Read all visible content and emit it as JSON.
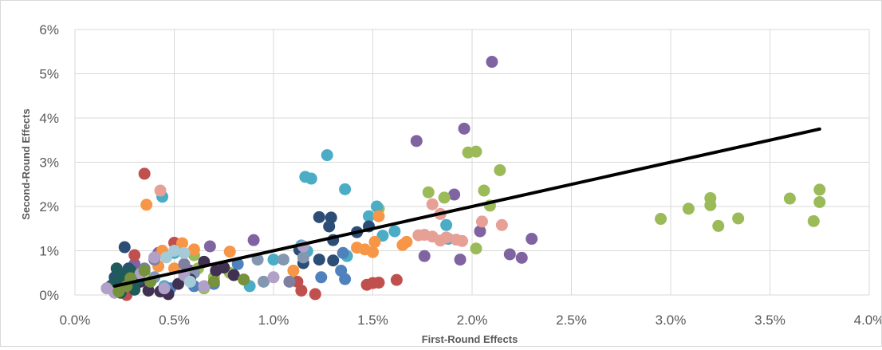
{
  "chart_data": {
    "type": "scatter",
    "title": "",
    "xlabel": "First-Round Effects",
    "ylabel": "Second-Round Effects",
    "xlim": [
      0.0,
      4.0
    ],
    "ylim": [
      0,
      6
    ],
    "x_ticks": [
      "0.0%",
      "0.5%",
      "1.0%",
      "1.5%",
      "2.0%",
      "2.5%",
      "3.0%",
      "3.5%",
      "4.0%"
    ],
    "y_ticks": [
      "0%",
      "1%",
      "2%",
      "3%",
      "4%",
      "5%",
      "6%"
    ],
    "grid": true,
    "legend": "none",
    "trend_line": {
      "x": [
        0.2,
        3.75
      ],
      "y": [
        0.2,
        3.75
      ],
      "color": "#000000"
    },
    "series": [
      {
        "color": "#8064a2",
        "points": [
          [
            2.1,
            5.27
          ],
          [
            1.96,
            3.76
          ],
          [
            1.72,
            3.48
          ],
          [
            1.91,
            2.27
          ],
          [
            2.04,
            1.44
          ],
          [
            2.3,
            1.27
          ],
          [
            2.19,
            0.92
          ],
          [
            2.25,
            0.84
          ],
          [
            1.94,
            0.8
          ],
          [
            1.76,
            0.88
          ],
          [
            0.9,
            1.24
          ],
          [
            0.68,
            1.1
          ],
          [
            0.42,
            0.95
          ],
          [
            0.3,
            0.7
          ],
          [
            0.58,
            0.55
          ]
        ]
      },
      {
        "color": "#9bbb59",
        "points": [
          [
            1.98,
            3.22
          ],
          [
            2.02,
            3.24
          ],
          [
            2.14,
            2.82
          ],
          [
            2.06,
            2.36
          ],
          [
            1.78,
            2.32
          ],
          [
            1.86,
            2.2
          ],
          [
            2.09,
            2.02
          ],
          [
            1.53,
            1.95
          ],
          [
            2.02,
            1.05
          ],
          [
            2.95,
            1.72
          ],
          [
            3.09,
            1.95
          ],
          [
            3.2,
            2.19
          ],
          [
            3.2,
            2.03
          ],
          [
            3.24,
            1.56
          ],
          [
            3.34,
            1.73
          ],
          [
            3.6,
            2.18
          ],
          [
            3.75,
            2.38
          ],
          [
            3.75,
            2.1
          ],
          [
            3.72,
            1.67
          ],
          [
            0.6,
            0.9
          ],
          [
            0.62,
            0.6
          ],
          [
            0.7,
            0.4
          ],
          [
            0.78,
            0.5
          ],
          [
            0.65,
            0.15
          ],
          [
            0.3,
            0.25
          ]
        ]
      },
      {
        "color": "#4bacc6",
        "points": [
          [
            1.27,
            3.16
          ],
          [
            1.16,
            2.67
          ],
          [
            1.19,
            2.63
          ],
          [
            1.36,
            2.39
          ],
          [
            0.44,
            2.22
          ],
          [
            1.52,
            2.0
          ],
          [
            1.48,
            1.78
          ],
          [
            1.61,
            1.44
          ],
          [
            1.55,
            1.34
          ],
          [
            1.87,
            1.58
          ],
          [
            1.88,
            1.27
          ],
          [
            1.14,
            1.12
          ],
          [
            1.17,
            0.99
          ],
          [
            1.37,
            0.88
          ],
          [
            1.0,
            0.8
          ],
          [
            0.88,
            0.2
          ],
          [
            0.5,
            0.95
          ],
          [
            0.45,
            0.2
          ],
          [
            0.22,
            0.5
          ]
        ]
      },
      {
        "color": "#c0504d",
        "points": [
          [
            0.35,
            2.74
          ],
          [
            1.47,
            0.23
          ],
          [
            1.5,
            0.27
          ],
          [
            1.53,
            0.28
          ],
          [
            1.62,
            0.34
          ],
          [
            1.21,
            0.02
          ],
          [
            1.14,
            0.1
          ],
          [
            1.12,
            0.3
          ],
          [
            0.5,
            1.18
          ],
          [
            0.3,
            0.9
          ],
          [
            0.26,
            0.0
          ]
        ]
      },
      {
        "color": "#f79646",
        "points": [
          [
            0.36,
            2.04
          ],
          [
            1.53,
            1.78
          ],
          [
            1.46,
            1.03
          ],
          [
            1.42,
            1.07
          ],
          [
            1.5,
            0.97
          ],
          [
            1.51,
            1.2
          ],
          [
            1.67,
            1.2
          ],
          [
            1.65,
            1.13
          ],
          [
            0.78,
            0.98
          ],
          [
            0.54,
            1.17
          ],
          [
            0.6,
            1.03
          ],
          [
            0.44,
            1.0
          ],
          [
            1.1,
            0.55
          ],
          [
            0.5,
            0.6
          ],
          [
            0.42,
            0.65
          ]
        ]
      },
      {
        "color": "#e6a096",
        "points": [
          [
            0.43,
            2.36
          ],
          [
            1.8,
            1.32
          ],
          [
            1.84,
            1.23
          ],
          [
            1.87,
            1.3
          ],
          [
            1.92,
            1.25
          ],
          [
            1.95,
            1.22
          ],
          [
            2.05,
            1.66
          ],
          [
            2.15,
            1.58
          ],
          [
            1.73,
            1.35
          ],
          [
            1.76,
            1.36
          ],
          [
            1.84,
            1.83
          ],
          [
            1.8,
            2.05
          ]
        ]
      },
      {
        "color": "#2c4d75",
        "points": [
          [
            1.23,
            1.76
          ],
          [
            1.29,
            1.75
          ],
          [
            1.28,
            1.55
          ],
          [
            1.3,
            1.24
          ],
          [
            1.42,
            1.42
          ],
          [
            1.48,
            1.55
          ],
          [
            1.3,
            0.78
          ],
          [
            1.23,
            0.8
          ],
          [
            1.15,
            0.72
          ],
          [
            1.13,
            1.02
          ],
          [
            0.25,
            1.08
          ],
          [
            0.27,
            0.6
          ],
          [
            0.2,
            0.4
          ]
        ]
      },
      {
        "color": "#8497b0",
        "points": [
          [
            0.92,
            0.8
          ],
          [
            0.95,
            0.3
          ],
          [
            1.05,
            0.8
          ],
          [
            1.15,
            0.85
          ],
          [
            0.6,
            0.5
          ],
          [
            0.4,
            0.4
          ]
        ]
      },
      {
        "color": "#4f81bd",
        "points": [
          [
            1.35,
            0.95
          ],
          [
            1.34,
            0.55
          ],
          [
            1.36,
            0.36
          ],
          [
            1.24,
            0.4
          ],
          [
            0.82,
            0.7
          ],
          [
            0.7,
            0.25
          ],
          [
            0.6,
            0.2
          ],
          [
            0.48,
            0.15
          ]
        ]
      },
      {
        "color": "#7f7f9f",
        "points": [
          [
            0.35,
            0.6
          ],
          [
            0.4,
            0.8
          ],
          [
            0.55,
            0.7
          ],
          [
            1.08,
            0.3
          ]
        ]
      },
      {
        "color": "#403152",
        "points": [
          [
            0.33,
            0.3
          ],
          [
            0.37,
            0.1
          ],
          [
            0.43,
            0.08
          ],
          [
            0.47,
            0.02
          ],
          [
            0.52,
            0.25
          ],
          [
            0.58,
            0.35
          ],
          [
            0.65,
            0.75
          ],
          [
            0.71,
            0.55
          ],
          [
            0.75,
            0.62
          ],
          [
            0.8,
            0.45
          ]
        ]
      },
      {
        "color": "#1f5b5b",
        "points": [
          [
            0.18,
            0.2
          ],
          [
            0.2,
            0.3
          ],
          [
            0.22,
            0.15
          ],
          [
            0.24,
            0.45
          ],
          [
            0.26,
            0.35
          ],
          [
            0.28,
            0.55
          ],
          [
            0.23,
            0.05
          ],
          [
            0.3,
            0.12
          ],
          [
            0.25,
            0.25
          ],
          [
            0.21,
            0.6
          ],
          [
            0.29,
            0.45
          ],
          [
            0.32,
            0.35
          ]
        ]
      },
      {
        "color": "#b1a0c7",
        "points": [
          [
            0.16,
            0.15
          ],
          [
            0.2,
            0.05
          ],
          [
            0.33,
            0.48
          ],
          [
            0.4,
            0.85
          ],
          [
            0.45,
            0.15
          ],
          [
            0.55,
            0.45
          ],
          [
            0.65,
            0.2
          ],
          [
            1.0,
            0.4
          ],
          [
            1.15,
            1.1
          ]
        ]
      },
      {
        "color": "#76923c",
        "points": [
          [
            0.22,
            0.08
          ],
          [
            0.26,
            0.2
          ],
          [
            0.28,
            0.38
          ],
          [
            0.35,
            0.55
          ],
          [
            0.38,
            0.3
          ],
          [
            0.7,
            0.3
          ],
          [
            0.85,
            0.35
          ]
        ]
      },
      {
        "color": "#a6cbd8",
        "points": [
          [
            0.46,
            0.85
          ],
          [
            0.5,
            1.0
          ],
          [
            0.55,
            0.95
          ],
          [
            0.58,
            0.3
          ]
        ]
      }
    ]
  }
}
